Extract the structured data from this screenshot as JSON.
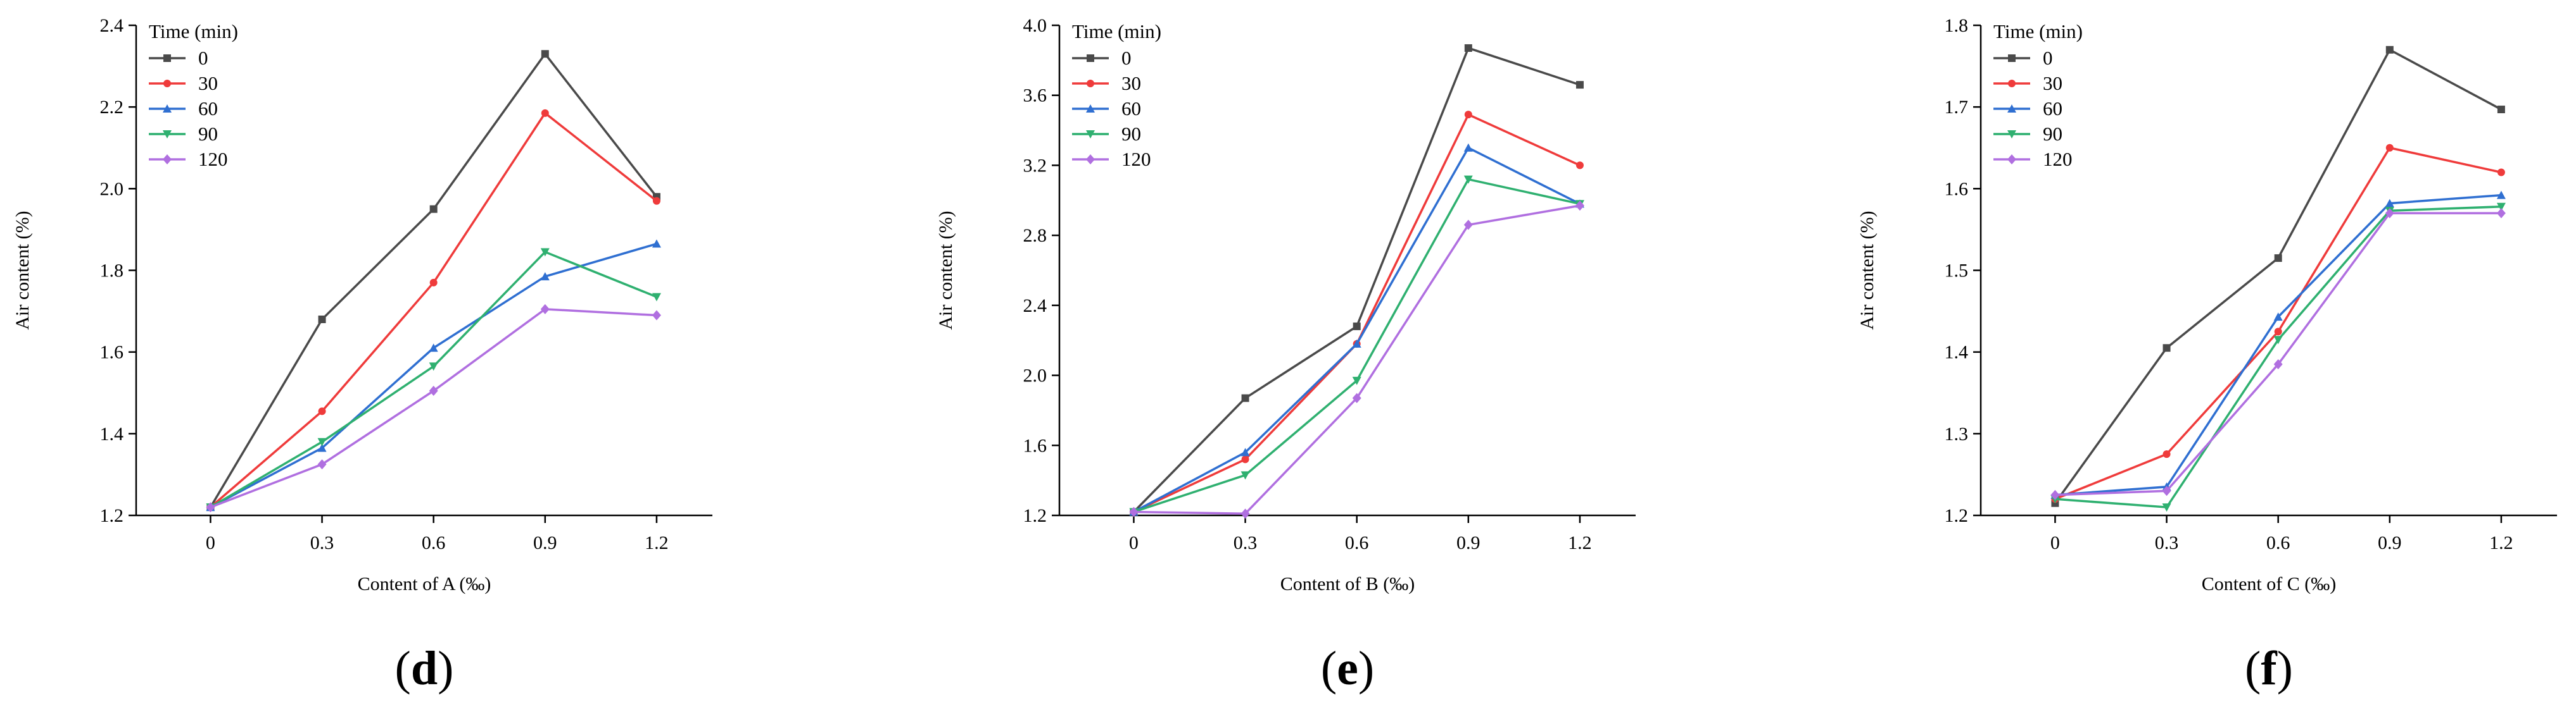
{
  "colors": {
    "0": "#4a4a4a",
    "30": "#ef3b3b",
    "60": "#2f6fd1",
    "90": "#2fb070",
    "120": "#b06fe0"
  },
  "chart_data": [
    {
      "type": "line",
      "panel_label": "d",
      "xlabel": "Content of A (‰)",
      "ylabel": "Air content (%)",
      "x": [
        0,
        0.3,
        0.6,
        0.9,
        1.2
      ],
      "x_ticks": [
        "0",
        "0.3",
        "0.6",
        "0.9",
        "1.2"
      ],
      "xlim": [
        -0.2,
        1.35
      ],
      "ylim": [
        1.2,
        2.4
      ],
      "y_ticks": [
        1.2,
        1.4,
        1.6,
        1.8,
        2.0,
        2.2,
        2.4
      ],
      "y_tick_labels": [
        "1.2",
        "1.4",
        "1.6",
        "1.8",
        "2.0",
        "2.2",
        "2.4"
      ],
      "legend_title": "Time (min)",
      "legend_position": "top-left",
      "series": [
        {
          "name": "0",
          "marker": "square",
          "values": [
            1.22,
            1.68,
            1.95,
            2.33,
            1.98
          ]
        },
        {
          "name": "30",
          "marker": "circle",
          "values": [
            1.22,
            1.455,
            1.77,
            2.185,
            1.97
          ]
        },
        {
          "name": "60",
          "marker": "triangle-up",
          "values": [
            1.22,
            1.365,
            1.61,
            1.785,
            1.865
          ]
        },
        {
          "name": "90",
          "marker": "triangle-down",
          "values": [
            1.22,
            1.38,
            1.565,
            1.845,
            1.735
          ]
        },
        {
          "name": "120",
          "marker": "diamond",
          "values": [
            1.22,
            1.325,
            1.505,
            1.705,
            1.69
          ]
        }
      ]
    },
    {
      "type": "line",
      "panel_label": "e",
      "xlabel": "Content of B (‰)",
      "ylabel": "Air content (%)",
      "x": [
        0,
        0.3,
        0.6,
        0.9,
        1.2
      ],
      "x_ticks": [
        "0",
        "0.3",
        "0.6",
        "0.9",
        "1.2"
      ],
      "xlim": [
        -0.2,
        1.35
      ],
      "ylim": [
        1.2,
        4.0
      ],
      "y_ticks": [
        1.2,
        1.6,
        2.0,
        2.4,
        2.8,
        3.2,
        3.6,
        4.0
      ],
      "y_tick_labels": [
        "1.2",
        "1.6",
        "2.0",
        "2.4",
        "2.8",
        "3.2",
        "3.6",
        "4.0"
      ],
      "legend_title": "Time (min)",
      "legend_position": "top-left",
      "series": [
        {
          "name": "0",
          "marker": "square",
          "values": [
            1.22,
            1.87,
            2.28,
            3.87,
            3.66
          ]
        },
        {
          "name": "30",
          "marker": "circle",
          "values": [
            1.22,
            1.52,
            2.18,
            3.49,
            3.2
          ]
        },
        {
          "name": "60",
          "marker": "triangle-up",
          "values": [
            1.22,
            1.56,
            2.18,
            3.3,
            2.98
          ]
        },
        {
          "name": "90",
          "marker": "triangle-down",
          "values": [
            1.22,
            1.43,
            1.97,
            3.12,
            2.98
          ]
        },
        {
          "name": "120",
          "marker": "diamond",
          "values": [
            1.22,
            1.21,
            1.87,
            2.86,
            2.97
          ]
        }
      ]
    },
    {
      "type": "line",
      "panel_label": "f",
      "xlabel": "Content of C (‰)",
      "ylabel": "Air content (%)",
      "x": [
        0,
        0.3,
        0.6,
        0.9,
        1.2
      ],
      "x_ticks": [
        "0",
        "0.3",
        "0.6",
        "0.9",
        "1.2"
      ],
      "xlim": [
        -0.2,
        1.35
      ],
      "ylim": [
        1.2,
        1.8
      ],
      "y_ticks": [
        1.2,
        1.3,
        1.4,
        1.5,
        1.6,
        1.7,
        1.8
      ],
      "y_tick_labels": [
        "1.2",
        "1.3",
        "1.4",
        "1.5",
        "1.6",
        "1.7",
        "1.8"
      ],
      "legend_title": "Time (min)",
      "legend_position": "top-left",
      "series": [
        {
          "name": "0",
          "marker": "square",
          "values": [
            1.215,
            1.405,
            1.515,
            1.77,
            1.697
          ]
        },
        {
          "name": "30",
          "marker": "circle",
          "values": [
            1.22,
            1.275,
            1.425,
            1.65,
            1.62
          ]
        },
        {
          "name": "60",
          "marker": "triangle-up",
          "values": [
            1.225,
            1.235,
            1.443,
            1.582,
            1.592
          ]
        },
        {
          "name": "90",
          "marker": "triangle-down",
          "values": [
            1.22,
            1.21,
            1.415,
            1.573,
            1.578
          ]
        },
        {
          "name": "120",
          "marker": "diamond",
          "values": [
            1.225,
            1.23,
            1.385,
            1.57,
            1.57
          ]
        }
      ]
    }
  ]
}
